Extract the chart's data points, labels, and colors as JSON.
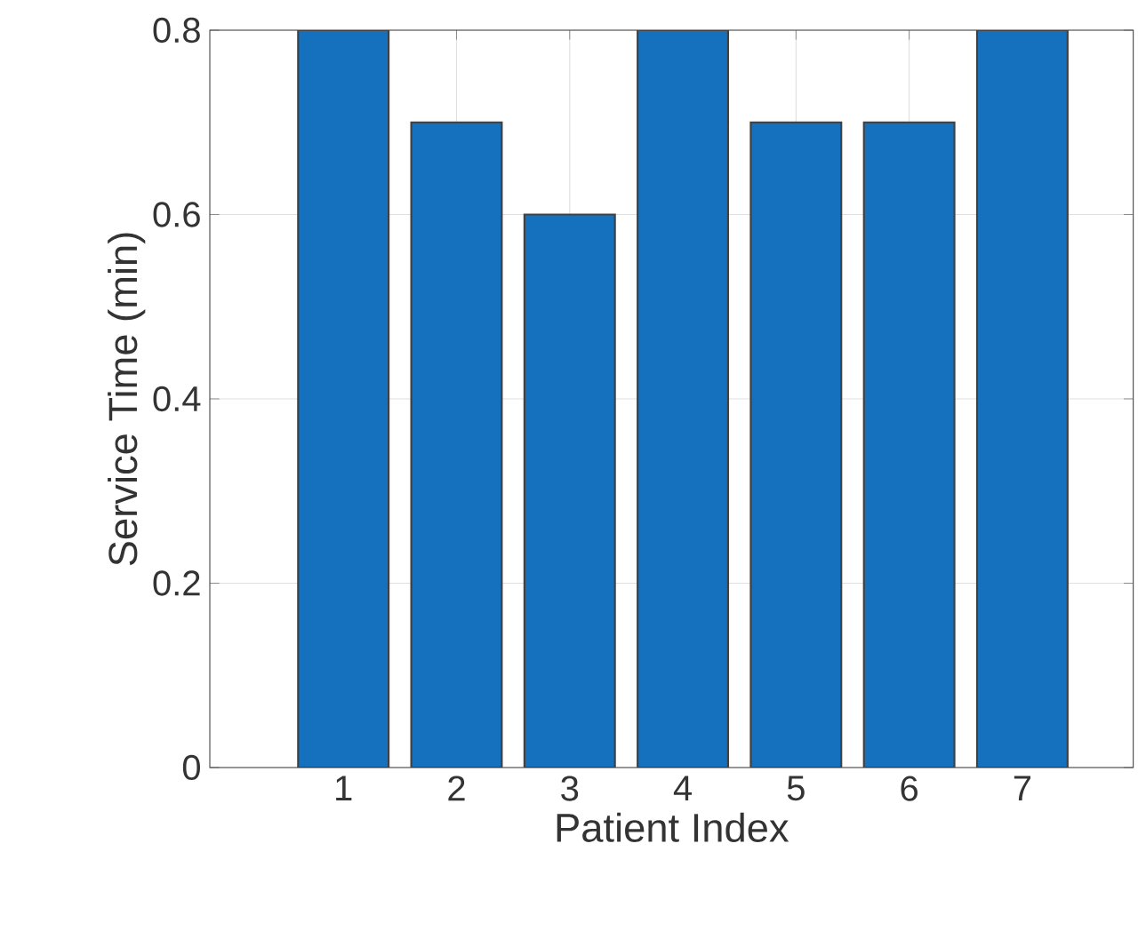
{
  "chart_data": {
    "type": "bar",
    "xlabel": "Patient Index",
    "ylabel": "Service Time (min)",
    "categories": [
      "1",
      "2",
      "3",
      "4",
      "5",
      "6",
      "7"
    ],
    "values": [
      0.8,
      0.7,
      0.6,
      0.8,
      0.7,
      0.7,
      0.8
    ],
    "color": "#1570be",
    "ylim": [
      0,
      0.8
    ],
    "yticks": [
      0,
      0.2,
      0.4,
      0.6,
      0.8
    ],
    "grid": true
  }
}
